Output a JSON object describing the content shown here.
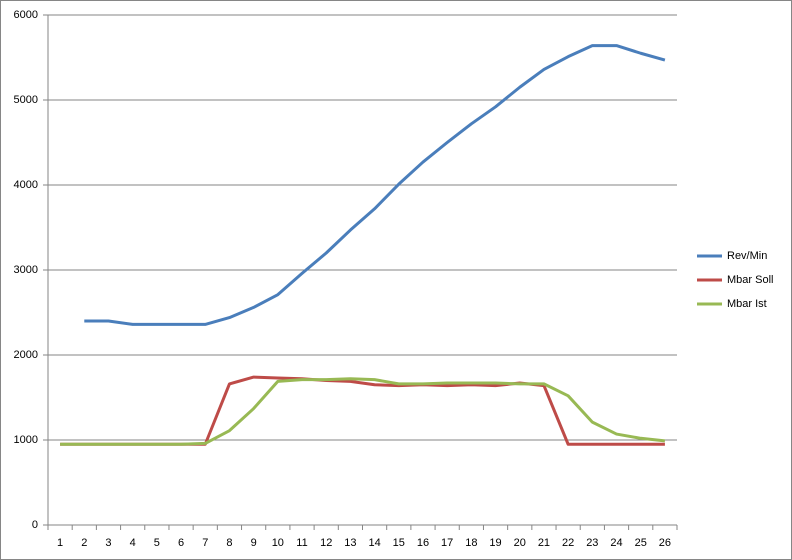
{
  "chart_data": {
    "type": "line",
    "categories": [
      "1",
      "2",
      "3",
      "4",
      "5",
      "6",
      "7",
      "8",
      "9",
      "10",
      "11",
      "12",
      "13",
      "14",
      "15",
      "16",
      "17",
      "18",
      "19",
      "20",
      "21",
      "22",
      "23",
      "24",
      "25",
      "26"
    ],
    "series": [
      {
        "name": "Rev/Min",
        "color": "#4a7ebb",
        "values": [
          null,
          2400,
          2400,
          2360,
          2360,
          2360,
          2360,
          2440,
          2560,
          2710,
          2960,
          3200,
          3470,
          3720,
          4010,
          4270,
          4500,
          4720,
          4920,
          5150,
          5360,
          5510,
          5640,
          5640,
          5550,
          5470
        ]
      },
      {
        "name": "Mbar Soll",
        "color": "#be4b48",
        "values": [
          950,
          950,
          950,
          950,
          950,
          950,
          950,
          1660,
          1740,
          1730,
          1720,
          1700,
          1690,
          1650,
          1640,
          1650,
          1640,
          1650,
          1640,
          1670,
          1640,
          950,
          950,
          950,
          950,
          950
        ]
      },
      {
        "name": "Mbar Ist",
        "color": "#98b954",
        "values": [
          950,
          950,
          950,
          950,
          950,
          950,
          960,
          1110,
          1370,
          1690,
          1710,
          1710,
          1720,
          1710,
          1660,
          1660,
          1670,
          1670,
          1670,
          1660,
          1660,
          1520,
          1210,
          1070,
          1020,
          990
        ]
      }
    ],
    "ylim": [
      0,
      6000
    ],
    "yticks": [
      0,
      1000,
      2000,
      3000,
      4000,
      5000,
      6000
    ],
    "grid": true,
    "legend": "right"
  }
}
